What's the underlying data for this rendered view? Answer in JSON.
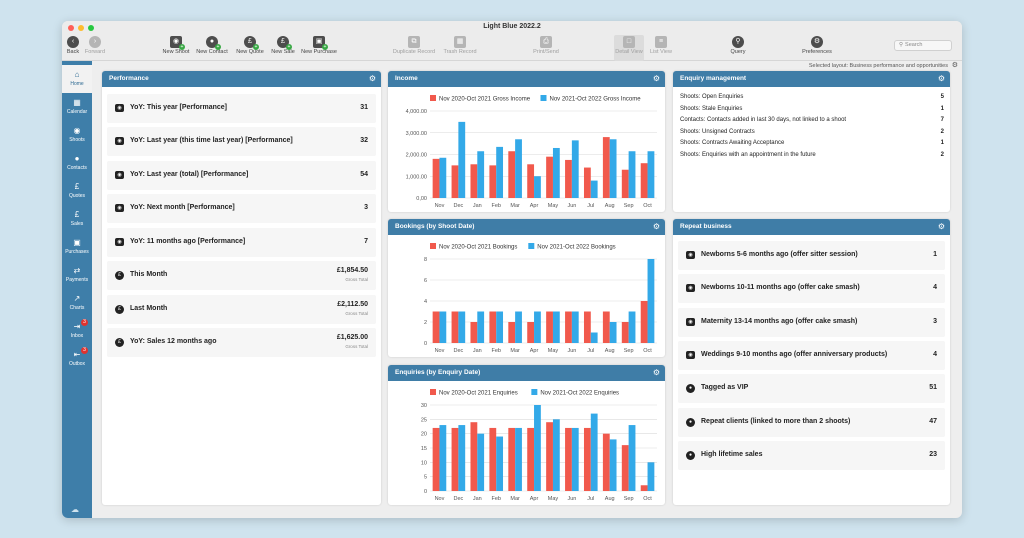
{
  "window": {
    "title": "Light Blue 2022.2"
  },
  "colors": {
    "sidebar": "#3e7ea9",
    "panel_header": "#3f7da7",
    "series_prev": "#f1594c",
    "series_curr": "#33a9e8",
    "badge": "#e0332f",
    "add": "#39a845"
  },
  "toolbar": {
    "back": "Back",
    "forward": "Forward",
    "new_shoot": "New Shoot",
    "new_contact": "New Contact",
    "new_quote": "New Quote",
    "new_sale": "New Sale",
    "new_purchase": "New Purchase",
    "duplicate_record": "Duplicate Record",
    "trash_record": "Trash Record",
    "print_send": "Print/Send",
    "detail_view": "Detail View",
    "list_view": "List View",
    "query": "Query",
    "preferences": "Preferences",
    "search_placeholder": "Search"
  },
  "layout_label": "Selected layout: Business performance and opportunities",
  "sidebar": {
    "items": [
      {
        "label": "Home",
        "icon": "home-icon"
      },
      {
        "label": "Calendar",
        "icon": "calendar-icon"
      },
      {
        "label": "Shoots",
        "icon": "camera-icon"
      },
      {
        "label": "Contacts",
        "icon": "person-icon"
      },
      {
        "label": "Quotes",
        "icon": "pound-icon"
      },
      {
        "label": "Sales",
        "icon": "pound-icon"
      },
      {
        "label": "Purchases",
        "icon": "card-icon"
      },
      {
        "label": "Payments",
        "icon": "transfer-icon"
      },
      {
        "label": "Charts",
        "icon": "chart-icon"
      },
      {
        "label": "Inbox",
        "icon": "inbox-icon",
        "badge": "3"
      },
      {
        "label": "Outbox",
        "icon": "outbox-icon",
        "badge": "3"
      }
    ]
  },
  "performance": {
    "title": "Performance",
    "rows": [
      {
        "label": "YoY: This year [Performance]",
        "value": "31",
        "icon": "camera-icon"
      },
      {
        "label": "YoY: Last year (this time last year) [Performance]",
        "value": "32",
        "icon": "camera-icon"
      },
      {
        "label": "YoY: Last year (total) [Performance]",
        "value": "54",
        "icon": "camera-icon"
      },
      {
        "label": "YoY: Next month [Performance]",
        "value": "3",
        "icon": "camera-icon"
      },
      {
        "label": "YoY: 11 months ago [Performance]",
        "value": "7",
        "icon": "camera-icon"
      },
      {
        "label": "This Month",
        "value": "£1,854.50",
        "sub": "Gross Total",
        "icon": "pound-icon"
      },
      {
        "label": "Last Month",
        "value": "£2,112.50",
        "sub": "Gross Total",
        "icon": "pound-icon"
      },
      {
        "label": "YoY: Sales 12 months ago",
        "value": "£1,625.00",
        "sub": "Gross Total",
        "icon": "pound-icon"
      }
    ]
  },
  "enquiry": {
    "title": "Enquiry management",
    "rows": [
      {
        "label": "Shoots: Open Enquiries",
        "value": "5"
      },
      {
        "label": "Shoots: Stale Enquiries",
        "value": "1"
      },
      {
        "label": "Contacts: Contacts added in last 30 days, not linked to a shoot",
        "value": "7"
      },
      {
        "label": "Shoots: Unsigned Contracts",
        "value": "2"
      },
      {
        "label": "Shoots: Contracts Awaiting Acceptance",
        "value": "1"
      },
      {
        "label": "Shoots: Enquiries with an appointment in the future",
        "value": "2"
      }
    ]
  },
  "repeat": {
    "title": "Repeat business",
    "rows": [
      {
        "label": "Newborns 5-6 months ago (offer sitter session)",
        "value": "1",
        "icon": "camera-icon"
      },
      {
        "label": "Newborns 10-11 months ago (offer cake smash)",
        "value": "4",
        "icon": "camera-icon"
      },
      {
        "label": "Maternity 13-14 months ago (offer cake smash)",
        "value": "3",
        "icon": "camera-icon"
      },
      {
        "label": "Weddings 9-10 months ago (offer anniversary products)",
        "value": "4",
        "icon": "camera-icon"
      },
      {
        "label": "Tagged as VIP",
        "value": "51",
        "icon": "person-icon"
      },
      {
        "label": "Repeat clients (linked to more than 2 shoots)",
        "value": "47",
        "icon": "person-icon"
      },
      {
        "label": "High lifetime sales",
        "value": "23",
        "icon": "person-icon"
      }
    ]
  },
  "chart_data": [
    {
      "id": "income",
      "type": "bar",
      "title": "Income",
      "categories": [
        "Nov",
        "Dec",
        "Jan",
        "Feb",
        "Mar",
        "Apr",
        "May",
        "Jun",
        "Jul",
        "Aug",
        "Sep",
        "Oct"
      ],
      "series": [
        {
          "name": "Nov 2020-Oct 2021 Gross Income",
          "values": [
            1800,
            1500,
            1550,
            1500,
            2150,
            1550,
            1900,
            1750,
            1400,
            2800,
            1300,
            1600
          ]
        },
        {
          "name": "Nov 2021-Oct 2022 Gross Income",
          "values": [
            1850,
            3500,
            2150,
            2350,
            2700,
            1000,
            2300,
            2650,
            800,
            2700,
            2150,
            2150
          ]
        }
      ],
      "ylim": [
        0,
        4000
      ],
      "yticks": [
        "0,00",
        "1,000.00",
        "2,000.00",
        "3,000.00",
        "4,000.00"
      ],
      "grid": true,
      "legend": "top"
    },
    {
      "id": "bookings",
      "type": "bar",
      "title": "Bookings (by Shoot Date)",
      "categories": [
        "Nov",
        "Dec",
        "Jan",
        "Feb",
        "Mar",
        "Apr",
        "May",
        "Jun",
        "Jul",
        "Aug",
        "Sep",
        "Oct"
      ],
      "series": [
        {
          "name": "Nov 2020-Oct 2021 Bookings",
          "values": [
            3,
            3,
            2,
            3,
            2,
            2,
            3,
            3,
            3,
            3,
            2,
            4
          ]
        },
        {
          "name": "Nov 2021-Oct 2022 Bookings",
          "values": [
            3,
            3,
            3,
            3,
            3,
            3,
            3,
            3,
            1,
            2,
            3,
            8
          ]
        }
      ],
      "ylim": [
        0,
        8
      ],
      "yticks": [
        "0",
        "2",
        "4",
        "6",
        "8"
      ],
      "grid": true,
      "legend": "top"
    },
    {
      "id": "enquiries",
      "type": "bar",
      "title": "Enquiries (by Enquiry Date)",
      "categories": [
        "Nov",
        "Dec",
        "Jan",
        "Feb",
        "Mar",
        "Apr",
        "May",
        "Jun",
        "Jul",
        "Aug",
        "Sep",
        "Oct"
      ],
      "series": [
        {
          "name": "Nov 2020-Oct 2021 Enquiries",
          "values": [
            22,
            22,
            24,
            22,
            22,
            22,
            24,
            22,
            22,
            20,
            16,
            2
          ]
        },
        {
          "name": "Nov 2021-Oct 2022 Enquiries",
          "values": [
            23,
            23,
            20,
            19,
            22,
            30,
            25,
            22,
            27,
            18,
            23,
            10
          ]
        }
      ],
      "ylim": [
        0,
        30
      ],
      "yticks": [
        "0",
        "5",
        "10",
        "15",
        "20",
        "25",
        "30"
      ],
      "grid": true,
      "legend": "top"
    }
  ]
}
